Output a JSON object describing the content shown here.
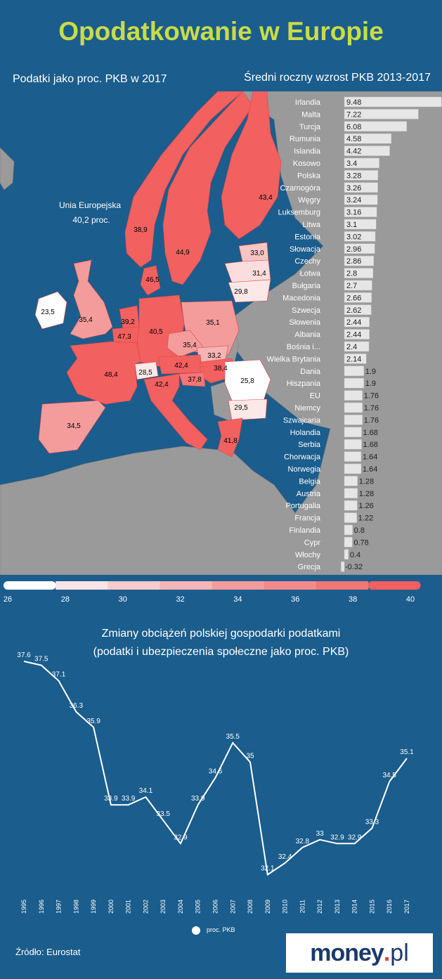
{
  "title": "Opodatkowanie w Europie",
  "map_subtitle": "Podatki jako proc. PKB w 2017",
  "bars_subtitle": "Średni roczny wzrost PKB 2013-2017",
  "eu_label_line1": "Unia Europejska",
  "eu_label_line2": "40,2 proc.",
  "colors": {
    "background": "#1b5d8c",
    "title": "#c9dc48",
    "land": "#9a9a9a",
    "bar": "#e6e6e6",
    "scale_low": "#ffffff",
    "scale_high": "#f26060",
    "line": "#ffffff"
  },
  "map_values": [
    {
      "country": "Szwecja",
      "value": "44,9"
    },
    {
      "country": "Finlandia",
      "value": "43,4"
    },
    {
      "country": "Norwegia",
      "value": "38,9"
    },
    {
      "country": "Dania",
      "value": "46,5"
    },
    {
      "country": "Estonia",
      "value": "33,0"
    },
    {
      "country": "Łotwa",
      "value": "31,4"
    },
    {
      "country": "Litwa",
      "value": "29,8"
    },
    {
      "country": "Irlandia",
      "value": "23,5"
    },
    {
      "country": "Wielka Brytania",
      "value": "35,4"
    },
    {
      "country": "Holandia",
      "value": "39,2"
    },
    {
      "country": "Belgia",
      "value": "47,3"
    },
    {
      "country": "Niemcy",
      "value": "40,5"
    },
    {
      "country": "Polska",
      "value": "35,1"
    },
    {
      "country": "Czechy",
      "value": "35,4"
    },
    {
      "country": "Słowacja",
      "value": "33,2"
    },
    {
      "country": "Austria",
      "value": "42,4"
    },
    {
      "country": "Węgry",
      "value": "38,4"
    },
    {
      "country": "Szwajcaria",
      "value": "28,5"
    },
    {
      "country": "Słowenia",
      "value": "37,8"
    },
    {
      "country": "Francja",
      "value": "48,4"
    },
    {
      "country": "Włochy",
      "value": "42,4"
    },
    {
      "country": "Rumunia",
      "value": "25,8"
    },
    {
      "country": "Bułgaria",
      "value": "29,5"
    },
    {
      "country": "Hiszpania",
      "value": "34,5"
    },
    {
      "country": "Grecja",
      "value": "41,8"
    }
  ],
  "legend": {
    "ticks": [
      "26",
      "28",
      "30",
      "32",
      "34",
      "36",
      "38",
      "40"
    ],
    "colors": [
      "#ffffff",
      "#fbe4e4",
      "#f8cccc",
      "#f6b4b4",
      "#f49c9c",
      "#f38a8a",
      "#f27676",
      "#f26060"
    ]
  },
  "chart_data": [
    {
      "type": "bar",
      "title": "Średni roczny wzrost PKB 2013-2017",
      "categories": [
        "Irlandia",
        "Malta",
        "Turcja",
        "Rumunia",
        "Islandia",
        "Kosowo",
        "Polska",
        "Czarnogóra",
        "Węgry",
        "Luksemburg",
        "Litwa",
        "Estonia",
        "Słowacja",
        "Czechy",
        "Łotwa",
        "Bułgaria",
        "Macedonia",
        "Szwecja",
        "Słowenia",
        "Albania",
        "Bośnia i...",
        "Wielka Brytania",
        "Dania",
        "Hiszpania",
        "EU",
        "Niemcy",
        "Szwajcaria",
        "Holandia",
        "Serbia",
        "Chorwacja",
        "Norwegia",
        "Belgia",
        "Austria",
        "Portugalia",
        "Francja",
        "Finlandia",
        "Cypr",
        "Włochy",
        "Grecja"
      ],
      "values": [
        9.48,
        7.22,
        6.08,
        4.58,
        4.42,
        3.4,
        3.28,
        3.26,
        3.24,
        3.16,
        3.1,
        3.02,
        2.96,
        2.86,
        2.8,
        2.7,
        2.66,
        2.62,
        2.44,
        2.44,
        2.4,
        2.14,
        1.9,
        1.9,
        1.76,
        1.76,
        1.76,
        1.68,
        1.68,
        1.64,
        1.64,
        1.28,
        1.28,
        1.26,
        1.22,
        0.8,
        0.78,
        0.4,
        -0.32
      ],
      "labels": [
        "9.48",
        "7.22",
        "6.08",
        "4.58",
        "4.42",
        "3.4",
        "3.28",
        "3.26",
        "3.24",
        "3.16",
        "3.1",
        "3.02",
        "2.96",
        "2.86",
        "2.8",
        "2.7",
        "2.66",
        "2.62",
        "2.44",
        "2.44",
        "2.4",
        "2.14",
        "1.9",
        "1.9",
        "1.76",
        "1.76",
        "1.76",
        "1.68",
        "1.68",
        "1.64",
        "1.64",
        "1.28",
        "1.28",
        "1.26",
        "1.22",
        "0.8",
        "0.78",
        "0.4",
        "-0.32"
      ],
      "orientation": "horizontal"
    },
    {
      "type": "line",
      "title_line1": "Zmiany obciążeń polskiej gospodarki podatkami",
      "title_line2": "(podatki i ubezpieczenia społeczne jako proc. PKB)",
      "x": [
        "1995",
        "1996",
        "1997",
        "1998",
        "1999",
        "2000",
        "2001",
        "2002",
        "2003",
        "2004",
        "2005",
        "2006",
        "2007",
        "2008",
        "2009",
        "2010",
        "2011",
        "2012",
        "2013",
        "2014",
        "2015",
        "2016",
        "2017"
      ],
      "values": [
        37.6,
        37.5,
        37.1,
        36.3,
        35.9,
        33.9,
        33.9,
        34.1,
        33.5,
        32.9,
        33.9,
        34.6,
        35.5,
        35,
        32.1,
        32.4,
        32.8,
        33,
        32.9,
        32.9,
        33.3,
        34.5,
        35.1
      ],
      "labels": [
        "37.6",
        "37.5",
        "37.1",
        "36.3",
        "35.9",
        "33.9",
        "33.9",
        "34.1",
        "33.5",
        "32.9",
        "33.9",
        "34.6",
        "35.5",
        "35",
        "32.1",
        "32.4",
        "32.8",
        "33",
        "32.9",
        "32.9",
        "33.3",
        "34.5",
        "35.1"
      ],
      "ylim": [
        32,
        37.8
      ],
      "legend": "proc. PKB",
      "legend_position": "bottom"
    }
  ],
  "source": "Źródło: Eurostat",
  "logo": {
    "part1": "money",
    "part2": ".",
    "part3": "pl"
  }
}
